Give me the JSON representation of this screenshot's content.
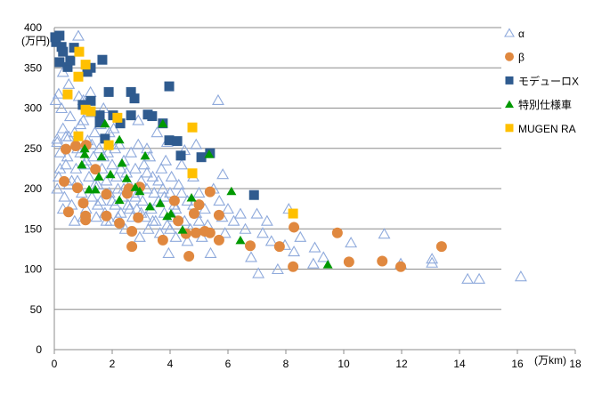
{
  "chart_data": {
    "type": "scatter",
    "title": "",
    "xlabel": "(万km)",
    "ylabel": "(万円)",
    "xlim": [
      0,
      18
    ],
    "ylim": [
      0,
      400
    ],
    "xticks": [
      "0",
      "2",
      "4",
      "6",
      "8",
      "10",
      "12",
      "14",
      "16",
      "18"
    ],
    "yticks": [
      "0",
      "50",
      "100",
      "150",
      "200",
      "250",
      "300",
      "350",
      "400"
    ],
    "grid": "horizontal",
    "legend_position": "right",
    "series": [
      {
        "name": "α",
        "marker": "triangle-open",
        "color": "#8FAADC",
        "points": [
          [
            0.1,
            258
          ],
          [
            0.15,
            215
          ],
          [
            0.2,
            225
          ],
          [
            0.25,
            300
          ],
          [
            0.3,
            275
          ],
          [
            0.35,
            190
          ],
          [
            0.4,
            265
          ],
          [
            0.45,
            240
          ],
          [
            0.5,
            205
          ],
          [
            0.55,
            290
          ],
          [
            0.6,
            180
          ],
          [
            0.7,
            270
          ],
          [
            0.75,
            225
          ],
          [
            0.8,
            210
          ],
          [
            0.83,
            390
          ],
          [
            0.85,
            315
          ],
          [
            0.9,
            245
          ],
          [
            0.95,
            195
          ],
          [
            1.0,
            285
          ],
          [
            1.05,
            230
          ],
          [
            1.1,
            175
          ],
          [
            1.15,
            260
          ],
          [
            1.2,
            215
          ],
          [
            1.25,
            320
          ],
          [
            1.3,
            190
          ],
          [
            1.35,
            240
          ],
          [
            1.4,
            270
          ],
          [
            1.45,
            165
          ],
          [
            1.5,
            205
          ],
          [
            1.55,
            250
          ],
          [
            1.6,
            185
          ],
          [
            1.65,
            225
          ],
          [
            1.7,
            300
          ],
          [
            1.75,
            170
          ],
          [
            1.8,
            210
          ],
          [
            1.85,
            245
          ],
          [
            1.9,
            195
          ],
          [
            1.95,
            160
          ],
          [
            2.0,
            230
          ],
          [
            2.05,
            275
          ],
          [
            2.1,
            180
          ],
          [
            2.15,
            215
          ],
          [
            2.2,
            200
          ],
          [
            2.25,
            255
          ],
          [
            2.3,
            170
          ],
          [
            2.35,
            190
          ],
          [
            2.4,
            235
          ],
          [
            2.45,
            150
          ],
          [
            2.5,
            220
          ],
          [
            2.55,
            180
          ],
          [
            2.6,
            205
          ],
          [
            2.65,
            245
          ],
          [
            2.7,
            165
          ],
          [
            2.75,
            195
          ],
          [
            2.8,
            225
          ],
          [
            2.85,
            175
          ],
          [
            2.9,
            255
          ],
          [
            2.95,
            140
          ],
          [
            3.0,
            210
          ],
          [
            3.05,
            185
          ],
          [
            3.1,
            230
          ],
          [
            3.15,
            165
          ],
          [
            3.2,
            200
          ],
          [
            3.25,
            150
          ],
          [
            3.3,
            240
          ],
          [
            3.35,
            175
          ],
          [
            3.4,
            215
          ],
          [
            3.45,
            195
          ],
          [
            3.5,
            160
          ],
          [
            3.55,
            270
          ],
          [
            3.6,
            185
          ],
          [
            3.65,
            145
          ],
          [
            3.7,
            225
          ],
          [
            3.75,
            200
          ],
          [
            3.8,
            170
          ],
          [
            3.85,
            235
          ],
          [
            3.9,
            155
          ],
          [
            3.95,
            120
          ],
          [
            4.0,
            195
          ],
          [
            4.05,
            215
          ],
          [
            4.1,
            165
          ],
          [
            4.15,
            180
          ],
          [
            4.2,
            140
          ],
          [
            4.3,
            205
          ],
          [
            4.4,
            230
          ],
          [
            4.5,
            160
          ],
          [
            4.6,
            185
          ],
          [
            4.7,
            150
          ],
          [
            4.8,
            215
          ],
          [
            4.9,
            170
          ],
          [
            5.0,
            195
          ],
          [
            5.1,
            140
          ],
          [
            5.2,
            175
          ],
          [
            5.3,
            155
          ],
          [
            5.4,
            120
          ],
          [
            5.5,
            200
          ],
          [
            5.66,
            310
          ],
          [
            5.7,
            185
          ],
          [
            5.8,
            165
          ],
          [
            5.82,
            218
          ],
          [
            5.9,
            145
          ],
          [
            6.0,
            175
          ],
          [
            6.2,
            160
          ],
          [
            6.43,
            169
          ],
          [
            6.6,
            150
          ],
          [
            6.8,
            115
          ],
          [
            7.0,
            169
          ],
          [
            7.05,
            95
          ],
          [
            7.2,
            145
          ],
          [
            7.35,
            160
          ],
          [
            7.5,
            135
          ],
          [
            7.72,
            100
          ],
          [
            7.97,
            130
          ],
          [
            8.1,
            175
          ],
          [
            8.28,
            122
          ],
          [
            8.5,
            140
          ],
          [
            8.95,
            107
          ],
          [
            9.0,
            127
          ],
          [
            9.3,
            115
          ],
          [
            10.25,
            133
          ],
          [
            11.4,
            144
          ],
          [
            11.97,
            107
          ],
          [
            13.05,
            113
          ],
          [
            13.05,
            108
          ],
          [
            14.28,
            88
          ],
          [
            14.68,
            88
          ],
          [
            16.12,
            91
          ],
          [
            0.05,
            310
          ],
          [
            0.1,
            200
          ],
          [
            0.2,
            245
          ],
          [
            0.3,
            175
          ],
          [
            0.4,
            230
          ],
          [
            0.5,
            265
          ],
          [
            0.6,
            210
          ],
          [
            0.7,
            160
          ],
          [
            0.8,
            250
          ],
          [
            0.9,
            280
          ],
          [
            1.0,
            165
          ],
          [
            1.1,
            235
          ],
          [
            1.2,
            295
          ],
          [
            1.3,
            255
          ],
          [
            1.4,
            205
          ],
          [
            1.5,
            180
          ],
          [
            1.6,
            280
          ],
          [
            1.7,
            240
          ],
          [
            1.8,
            160
          ],
          [
            1.9,
            270
          ],
          [
            2.0,
            185
          ],
          [
            2.1,
            250
          ],
          [
            2.2,
            165
          ],
          [
            2.3,
            225
          ],
          [
            2.4,
            200
          ],
          [
            2.6,
            175
          ],
          [
            2.8,
            190
          ],
          [
            3.0,
            170
          ],
          [
            3.2,
            220
          ],
          [
            3.4,
            160
          ],
          [
            3.6,
            210
          ],
          [
            3.8,
            190
          ],
          [
            4.0,
            150
          ],
          [
            4.2,
            175
          ],
          [
            4.4,
            195
          ],
          [
            4.6,
            135
          ],
          [
            4.8,
            180
          ],
          [
            5.0,
            160
          ],
          [
            0.3,
            345
          ],
          [
            0.5,
            330
          ],
          [
            0.15,
            318
          ],
          [
            1.0,
            310
          ],
          [
            4.9,
            255
          ],
          [
            4.5,
            248
          ],
          [
            3.9,
            258
          ],
          [
            3.2,
            250
          ],
          [
            2.9,
            285
          ],
          [
            0.1,
            262
          ]
        ]
      },
      {
        "name": "β",
        "marker": "circle",
        "color": "#E0883F",
        "points": [
          [
            0.4,
            249
          ],
          [
            0.49,
            171
          ],
          [
            0.34,
            209
          ],
          [
            0.74,
            253
          ],
          [
            1.1,
            254
          ],
          [
            0.8,
            201
          ],
          [
            1.0,
            182
          ],
          [
            1.08,
            166
          ],
          [
            1.08,
            161
          ],
          [
            1.42,
            224
          ],
          [
            1.8,
            193
          ],
          [
            1.8,
            166
          ],
          [
            2.25,
            157
          ],
          [
            2.52,
            194
          ],
          [
            2.58,
            200
          ],
          [
            2.68,
            147
          ],
          [
            2.9,
            164
          ],
          [
            2.95,
            202
          ],
          [
            2.68,
            128
          ],
          [
            3.75,
            136
          ],
          [
            4.15,
            185
          ],
          [
            4.28,
            160
          ],
          [
            4.55,
            144
          ],
          [
            4.65,
            116
          ],
          [
            4.83,
            169
          ],
          [
            4.89,
            145
          ],
          [
            5.0,
            180
          ],
          [
            5.2,
            147
          ],
          [
            5.38,
            196
          ],
          [
            5.38,
            145
          ],
          [
            5.69,
            167
          ],
          [
            5.69,
            136
          ],
          [
            6.77,
            129
          ],
          [
            7.78,
            128
          ],
          [
            8.28,
            152
          ],
          [
            8.25,
            103
          ],
          [
            9.78,
            145
          ],
          [
            10.18,
            109
          ],
          [
            11.33,
            110
          ],
          [
            11.97,
            103
          ],
          [
            13.38,
            128
          ]
        ]
      },
      {
        "name": "モデューロX",
        "marker": "square",
        "color": "#2F5B8F",
        "points": [
          [
            0.18,
            390
          ],
          [
            0.06,
            382
          ],
          [
            0.25,
            376
          ],
          [
            0.18,
            357
          ],
          [
            0.46,
            351
          ],
          [
            0.55,
            359
          ],
          [
            0.68,
            375
          ],
          [
            1.26,
            350
          ],
          [
            1.14,
            345
          ],
          [
            1.66,
            360
          ],
          [
            1.88,
            320
          ],
          [
            1.26,
            309
          ],
          [
            0.98,
            304
          ],
          [
            1.57,
            291
          ],
          [
            1.57,
            282
          ],
          [
            2.03,
            291
          ],
          [
            2.28,
            281
          ],
          [
            2.65,
            291
          ],
          [
            2.65,
            320
          ],
          [
            2.77,
            312
          ],
          [
            3.23,
            292
          ],
          [
            3.38,
            290
          ],
          [
            3.97,
            327
          ],
          [
            3.75,
            281
          ],
          [
            3.97,
            260
          ],
          [
            4.25,
            259
          ],
          [
            4.37,
            241
          ],
          [
            1.75,
            262
          ],
          [
            5.08,
            239
          ],
          [
            5.38,
            244
          ],
          [
            6.9,
            192
          ],
          [
            0.03,
            388
          ],
          [
            0.3,
            370
          ]
        ]
      },
      {
        "name": "特別仕様車",
        "marker": "triangle",
        "color": "#009900",
        "points": [
          [
            1.75,
            281
          ],
          [
            2.25,
            261
          ],
          [
            3.75,
            281
          ],
          [
            1.05,
            250
          ],
          [
            1.05,
            243
          ],
          [
            0.95,
            230
          ],
          [
            1.63,
            240
          ],
          [
            2.34,
            232
          ],
          [
            3.14,
            241
          ],
          [
            5.35,
            243
          ],
          [
            1.54,
            215
          ],
          [
            1.2,
            199
          ],
          [
            1.42,
            199
          ],
          [
            2.25,
            186
          ],
          [
            2.8,
            202
          ],
          [
            2.95,
            197
          ],
          [
            3.3,
            178
          ],
          [
            3.66,
            182
          ],
          [
            4.03,
            169
          ],
          [
            3.9,
            166
          ],
          [
            4.43,
            149
          ],
          [
            4.74,
            189
          ],
          [
            6.12,
            197
          ],
          [
            6.43,
            136
          ],
          [
            9.45,
            106
          ],
          [
            2.5,
            213
          ],
          [
            1.94,
            218
          ]
        ]
      },
      {
        "name": "MUGEN RA",
        "marker": "square",
        "color": "#FFC000",
        "points": [
          [
            0.86,
            370
          ],
          [
            1.08,
            354
          ],
          [
            0.83,
            339
          ],
          [
            0.46,
            317
          ],
          [
            1.08,
            298
          ],
          [
            1.26,
            296
          ],
          [
            2.18,
            288
          ],
          [
            0.83,
            265
          ],
          [
            1.88,
            254
          ],
          [
            4.77,
            276
          ],
          [
            4.77,
            219
          ],
          [
            8.25,
            169
          ]
        ]
      }
    ]
  }
}
